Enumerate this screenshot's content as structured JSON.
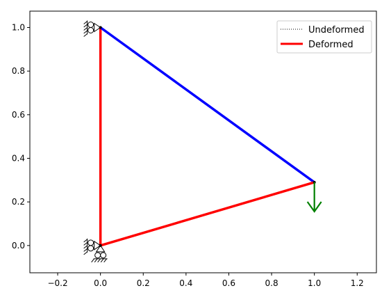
{
  "chart_data": {
    "type": "line",
    "title": "",
    "xlabel": "",
    "ylabel": "",
    "xlim": [
      -0.33,
      1.29
    ],
    "ylim": [
      -0.125,
      1.075
    ],
    "xticks": [
      -0.2,
      0.0,
      0.2,
      0.4,
      0.6,
      0.8,
      1.0,
      1.2
    ],
    "yticks": [
      0.0,
      0.2,
      0.4,
      0.6,
      0.8,
      1.0
    ],
    "xtick_labels": [
      "−0.2",
      "0.0",
      "0.2",
      "0.4",
      "0.6",
      "0.8",
      "1.0",
      "1.2"
    ],
    "ytick_labels": [
      "0.0",
      "0.2",
      "0.4",
      "0.6",
      "0.8",
      "1.0"
    ],
    "grid": false,
    "legend_position": "upper right",
    "legend": [
      {
        "label": "Undeformed",
        "color": "#000000",
        "style": "dotted"
      },
      {
        "label": "Deformed",
        "color": "#ff0000",
        "style": "solid"
      }
    ],
    "nodes": [
      {
        "id": 1,
        "x": 0.0,
        "y": 0.0,
        "support": "pinned-roller"
      },
      {
        "id": 2,
        "x": 0.0,
        "y": 1.0,
        "support": "roller"
      },
      {
        "id": 3,
        "x": 1.0,
        "y": 0.29,
        "support": "none"
      }
    ],
    "undeformed_members": [
      {
        "from": [
          0.0,
          0.0
        ],
        "to": [
          0.0,
          1.0
        ]
      },
      {
        "from": [
          0.0,
          1.0
        ],
        "to": [
          1.0,
          0.29
        ]
      },
      {
        "from": [
          1.0,
          0.29
        ],
        "to": [
          0.0,
          0.0
        ]
      }
    ],
    "deformed_members": [
      {
        "from": [
          0.0,
          0.0
        ],
        "to": [
          0.0,
          1.0
        ],
        "color": "#ff0000"
      },
      {
        "from": [
          0.0,
          1.0
        ],
        "to": [
          1.0,
          0.29
        ],
        "color": "#0000ff"
      },
      {
        "from": [
          1.0,
          0.29
        ],
        "to": [
          0.0,
          0.0
        ],
        "color": "#ff0000"
      }
    ],
    "loads": [
      {
        "at": [
          1.0,
          0.29
        ],
        "direction": "down",
        "color": "#008000"
      }
    ]
  }
}
